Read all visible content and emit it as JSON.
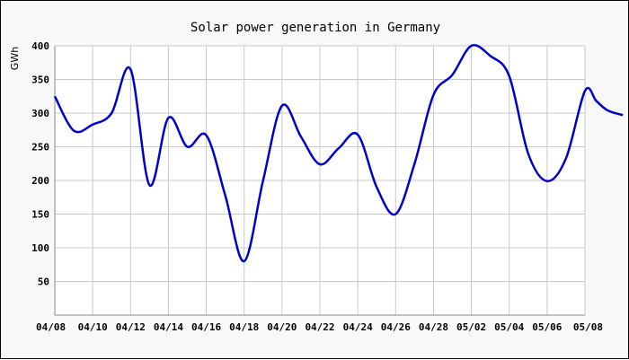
{
  "chart_data": {
    "type": "line",
    "title": "Solar power generation in Germany",
    "xlabel": "",
    "ylabel": "GWh",
    "ylim": [
      0,
      400
    ],
    "yticks": [
      50,
      100,
      150,
      200,
      250,
      300,
      350,
      400
    ],
    "xticks": [
      "04/08",
      "04/10",
      "04/12",
      "04/14",
      "04/16",
      "04/18",
      "04/20",
      "04/22",
      "04/24",
      "04/26",
      "04/28",
      "05/02",
      "05/04",
      "05/06",
      "05/08"
    ],
    "grid": true,
    "colors": {
      "line": "#0000cc",
      "grid": "#c8c8c8",
      "background": "#ffffff",
      "frame": "#f8f8f8"
    },
    "series": [
      {
        "x": [
          0,
          0.5,
          1,
          1.5,
          2,
          2.5,
          3,
          3.5,
          4,
          4.5,
          5,
          5.5,
          6,
          6.5,
          7,
          7.5,
          8,
          8.5,
          9,
          9.5,
          10,
          10.5,
          11,
          11.5,
          12,
          12.5,
          13,
          13.5,
          14
        ],
        "values": [
          325,
          274,
          283,
          300,
          365,
          193,
          293,
          250,
          267,
          178,
          80,
          200,
          311,
          265,
          224,
          248,
          268,
          190,
          150,
          225,
          327,
          357,
          400,
          385,
          355,
          240,
          199,
          233,
          333
        ]
      }
    ],
    "tail": {
      "x": [
        14.3,
        14.6,
        15
      ],
      "values": [
        318,
        304,
        297
      ]
    }
  }
}
